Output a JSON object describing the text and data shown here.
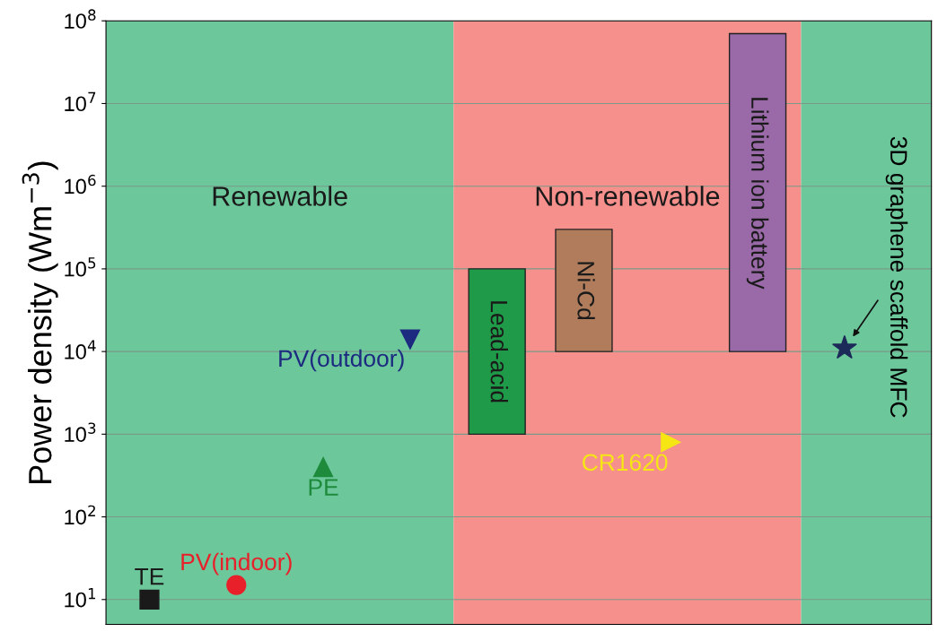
{
  "chart_data": {
    "type": "scatter",
    "ylabel": "Power density (Wm$^{−3}$)",
    "categories": [
      null,
      null,
      null,
      null,
      null,
      null,
      null,
      null,
      null
    ],
    "log": "y",
    "ylim": [
      5,
      100000000
    ],
    "yticks": [
      {
        "value": 10,
        "label": "10$^{1}$"
      },
      {
        "value": 100,
        "label": "10$^{2}$"
      },
      {
        "value": 1000,
        "label": "10$^{3}$"
      },
      {
        "value": 10000,
        "label": "10$^{4}$"
      },
      {
        "value": 100000,
        "label": "10$^{5}$"
      },
      {
        "value": 1000000,
        "label": "10$^{6}$"
      },
      {
        "value": 10000000,
        "label": "10$^{7}$"
      },
      {
        "value": 100000000,
        "label": "10$^{8}$"
      }
    ],
    "grid": "y",
    "tick_labels": "y",
    "annotations": [
      "Renewable",
      "Non-renewable"
    ],
    "series": [
      {
        "name": "TE",
        "marker": "square",
        "color": "#1a1a1a",
        "values": [
          10,
          null,
          null,
          null,
          null,
          null,
          null,
          null,
          null
        ]
      },
      {
        "name": "PV(indoor)",
        "marker": "circle",
        "color": "#e8202a",
        "values": [
          null,
          15,
          null,
          null,
          null,
          null,
          null,
          null,
          null
        ]
      },
      {
        "name": "PE",
        "marker": "triangle",
        "color": "#1e8a3c",
        "values": [
          null,
          null,
          400,
          null,
          null,
          null,
          null,
          null,
          null
        ]
      },
      {
        "name": "PV(outdoor)",
        "marker": "triangle-down",
        "color": "#1c2a80",
        "values": [
          null,
          null,
          null,
          14000,
          null,
          null,
          null,
          null,
          null
        ]
      },
      {
        "name": "Lead-acid",
        "type": "bar",
        "color": "#1f9a48",
        "base": [
          null,
          null,
          null,
          null,
          1000,
          null,
          null,
          null,
          null
        ],
        "values": [
          null,
          null,
          null,
          null,
          99000,
          null,
          null,
          null,
          null
        ]
      },
      {
        "name": "Ni-Cd",
        "type": "bar",
        "color": "#b07c5c",
        "base": [
          null,
          null,
          null,
          null,
          null,
          10000,
          null,
          null,
          null
        ],
        "values": [
          null,
          null,
          null,
          null,
          null,
          290000,
          null,
          null,
          null
        ]
      },
      {
        "name": "CR1620",
        "marker": "triangle-right",
        "color": "#f5e614",
        "values": [
          null,
          null,
          null,
          null,
          null,
          null,
          800,
          null,
          null
        ]
      },
      {
        "name": "Lithium ion battery",
        "type": "bar",
        "color": "#9a6aa8",
        "base": [
          null,
          null,
          null,
          null,
          null,
          null,
          null,
          10000,
          null
        ],
        "values": [
          null,
          null,
          null,
          null,
          null,
          null,
          null,
          69990000,
          null
        ]
      },
      {
        "name": "3D graphene scaffold MFC",
        "marker": "star",
        "color": "#1c2a5a",
        "values": [
          null,
          null,
          null,
          null,
          null,
          null,
          null,
          null,
          11000
        ]
      }
    ]
  }
}
